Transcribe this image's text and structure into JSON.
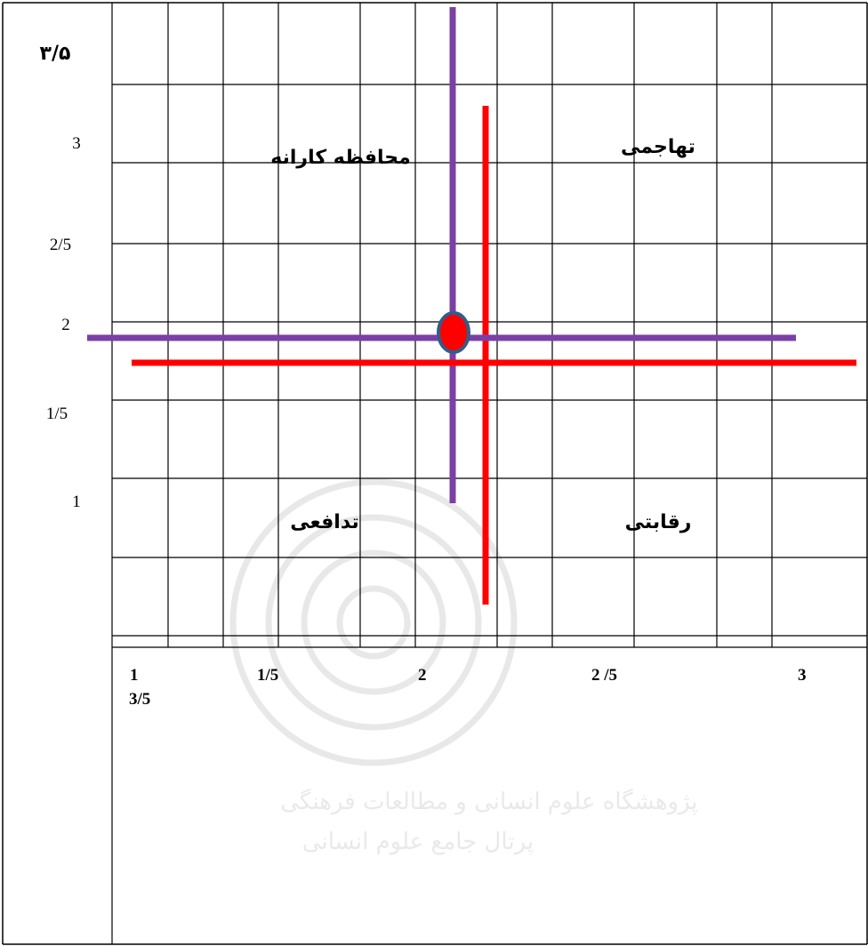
{
  "chart_data": {
    "type": "scatter",
    "title": "",
    "y_axis": {
      "labels": [
        "۳/۵",
        "3",
        "2/5",
        "2",
        "1/5",
        "1"
      ]
    },
    "x_axis": {
      "labels": [
        "1",
        "3/5",
        "1/5",
        "2",
        "2 /5",
        "3"
      ]
    },
    "quadrants": {
      "top_left": "محافظه کارانه",
      "top_right": "تهاجمی",
      "bottom_left": "تدافعی",
      "bottom_right": "رقابتی"
    },
    "lines": [
      {
        "color": "#7b3fa6",
        "orientation": "vertical"
      },
      {
        "color": "#7b3fa6",
        "orientation": "horizontal"
      },
      {
        "color": "#ff0000",
        "orientation": "vertical"
      },
      {
        "color": "#ff0000",
        "orientation": "horizontal"
      }
    ],
    "point": {
      "fill": "#ff0000",
      "stroke": "#2f5d8c"
    },
    "grid": true,
    "background_watermark": [
      "پژوهشگاه علوم انسانی و مطالعات فرهنگی",
      "پرتال جامع علوم انسانی"
    ]
  }
}
